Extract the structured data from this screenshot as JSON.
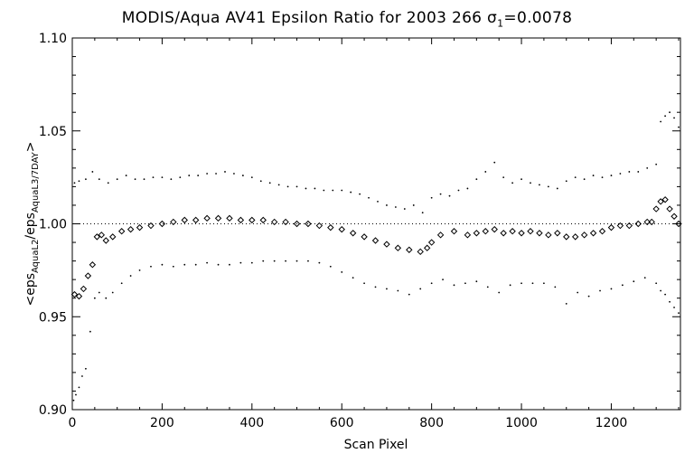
{
  "chart_data": {
    "type": "scatter",
    "title": {
      "prefix": "MODIS/Aqua AV41 Epsilon Ratio for 2003 266 ",
      "sigma_symbol": "σ",
      "sigma_subscript": "1",
      "sigma_value": "=0.0078"
    },
    "xlabel": "Scan Pixel",
    "ylabel": {
      "open": "<eps",
      "sub1": "AquaL2",
      "mid": "/eps",
      "sub2": "AquaL3/7DAY",
      "close": ">"
    },
    "xlim": [
      0,
      1354
    ],
    "ylim": [
      0.9,
      1.1
    ],
    "xticks": [
      0,
      200,
      400,
      600,
      800,
      1000,
      1200
    ],
    "yticks": [
      0.9,
      0.95,
      1.0,
      1.05,
      1.1
    ],
    "xtick_labels": [
      "0",
      "200",
      "400",
      "600",
      "800",
      "1000",
      "1200"
    ],
    "ytick_labels": [
      "0.90",
      "0.95",
      "1.00",
      "1.05",
      "1.10"
    ],
    "reference_line": 1.0,
    "series": [
      {
        "role": "mean ratio",
        "marker": "diamond",
        "color": "#000000",
        "x": [
          5,
          15,
          25,
          35,
          45,
          55,
          65,
          75,
          90,
          110,
          130,
          150,
          175,
          200,
          225,
          250,
          275,
          300,
          325,
          350,
          375,
          400,
          425,
          450,
          475,
          500,
          525,
          550,
          575,
          600,
          625,
          650,
          675,
          700,
          725,
          750,
          775,
          790,
          800,
          820,
          850,
          880,
          900,
          920,
          940,
          960,
          980,
          1000,
          1020,
          1040,
          1060,
          1080,
          1100,
          1120,
          1140,
          1160,
          1180,
          1200,
          1220,
          1240,
          1260,
          1280,
          1290,
          1300,
          1310,
          1320,
          1330,
          1340,
          1350
        ],
        "y": [
          0.962,
          0.961,
          0.965,
          0.972,
          0.978,
          0.993,
          0.994,
          0.991,
          0.993,
          0.996,
          0.997,
          0.998,
          0.999,
          1.0,
          1.001,
          1.002,
          1.002,
          1.003,
          1.003,
          1.003,
          1.002,
          1.002,
          1.002,
          1.001,
          1.001,
          1.0,
          1.0,
          0.999,
          0.998,
          0.997,
          0.995,
          0.993,
          0.991,
          0.989,
          0.987,
          0.986,
          0.985,
          0.987,
          0.99,
          0.994,
          0.996,
          0.994,
          0.995,
          0.996,
          0.997,
          0.995,
          0.996,
          0.995,
          0.996,
          0.995,
          0.994,
          0.995,
          0.993,
          0.993,
          0.994,
          0.995,
          0.996,
          0.998,
          0.999,
          0.999,
          1.0,
          1.001,
          1.001,
          1.008,
          1.012,
          1.013,
          1.008,
          1.004,
          1.0
        ]
      },
      {
        "role": "upper bound",
        "marker": "dot",
        "color": "#000000",
        "x": [
          5,
          15,
          30,
          45,
          60,
          80,
          100,
          120,
          140,
          160,
          180,
          200,
          220,
          240,
          260,
          280,
          300,
          320,
          340,
          360,
          380,
          400,
          420,
          440,
          460,
          480,
          500,
          520,
          540,
          560,
          580,
          600,
          620,
          640,
          660,
          680,
          700,
          720,
          740,
          760,
          780,
          800,
          820,
          840,
          860,
          880,
          900,
          920,
          940,
          960,
          980,
          1000,
          1020,
          1040,
          1060,
          1080,
          1100,
          1120,
          1140,
          1160,
          1180,
          1200,
          1220,
          1240,
          1260,
          1280,
          1300,
          1310,
          1320,
          1330,
          1340,
          1350
        ],
        "y": [
          1.022,
          1.023,
          1.024,
          1.028,
          1.024,
          1.022,
          1.024,
          1.026,
          1.024,
          1.024,
          1.025,
          1.025,
          1.024,
          1.025,
          1.026,
          1.026,
          1.027,
          1.027,
          1.028,
          1.027,
          1.026,
          1.025,
          1.023,
          1.022,
          1.021,
          1.02,
          1.02,
          1.019,
          1.019,
          1.018,
          1.018,
          1.018,
          1.017,
          1.016,
          1.014,
          1.012,
          1.01,
          1.009,
          1.008,
          1.01,
          1.006,
          1.014,
          1.016,
          1.015,
          1.018,
          1.019,
          1.024,
          1.028,
          1.033,
          1.025,
          1.022,
          1.024,
          1.022,
          1.021,
          1.02,
          1.019,
          1.023,
          1.025,
          1.024,
          1.026,
          1.025,
          1.026,
          1.027,
          1.028,
          1.028,
          1.03,
          1.032,
          1.055,
          1.058,
          1.06,
          1.057,
          1.052
        ]
      },
      {
        "role": "lower bound",
        "marker": "dot",
        "color": "#000000",
        "x": [
          3,
          8,
          15,
          22,
          30,
          40,
          50,
          60,
          75,
          90,
          110,
          130,
          150,
          175,
          200,
          225,
          250,
          275,
          300,
          325,
          350,
          375,
          400,
          425,
          450,
          475,
          500,
          525,
          550,
          575,
          600,
          625,
          650,
          675,
          700,
          725,
          750,
          775,
          800,
          825,
          850,
          875,
          900,
          925,
          950,
          975,
          1000,
          1025,
          1050,
          1075,
          1100,
          1125,
          1150,
          1175,
          1200,
          1225,
          1250,
          1275,
          1300,
          1310,
          1320,
          1330,
          1340,
          1350
        ],
        "y": [
          0.905,
          0.908,
          0.912,
          0.918,
          0.922,
          0.942,
          0.96,
          0.963,
          0.96,
          0.963,
          0.968,
          0.972,
          0.975,
          0.977,
          0.978,
          0.977,
          0.978,
          0.978,
          0.979,
          0.978,
          0.978,
          0.979,
          0.979,
          0.98,
          0.98,
          0.98,
          0.98,
          0.98,
          0.979,
          0.977,
          0.974,
          0.971,
          0.968,
          0.966,
          0.965,
          0.964,
          0.962,
          0.965,
          0.968,
          0.97,
          0.967,
          0.968,
          0.969,
          0.966,
          0.963,
          0.967,
          0.968,
          0.968,
          0.968,
          0.966,
          0.957,
          0.963,
          0.961,
          0.964,
          0.965,
          0.967,
          0.969,
          0.971,
          0.968,
          0.964,
          0.962,
          0.958,
          0.955,
          0.952
        ]
      }
    ],
    "grid": false,
    "legend": "none"
  }
}
